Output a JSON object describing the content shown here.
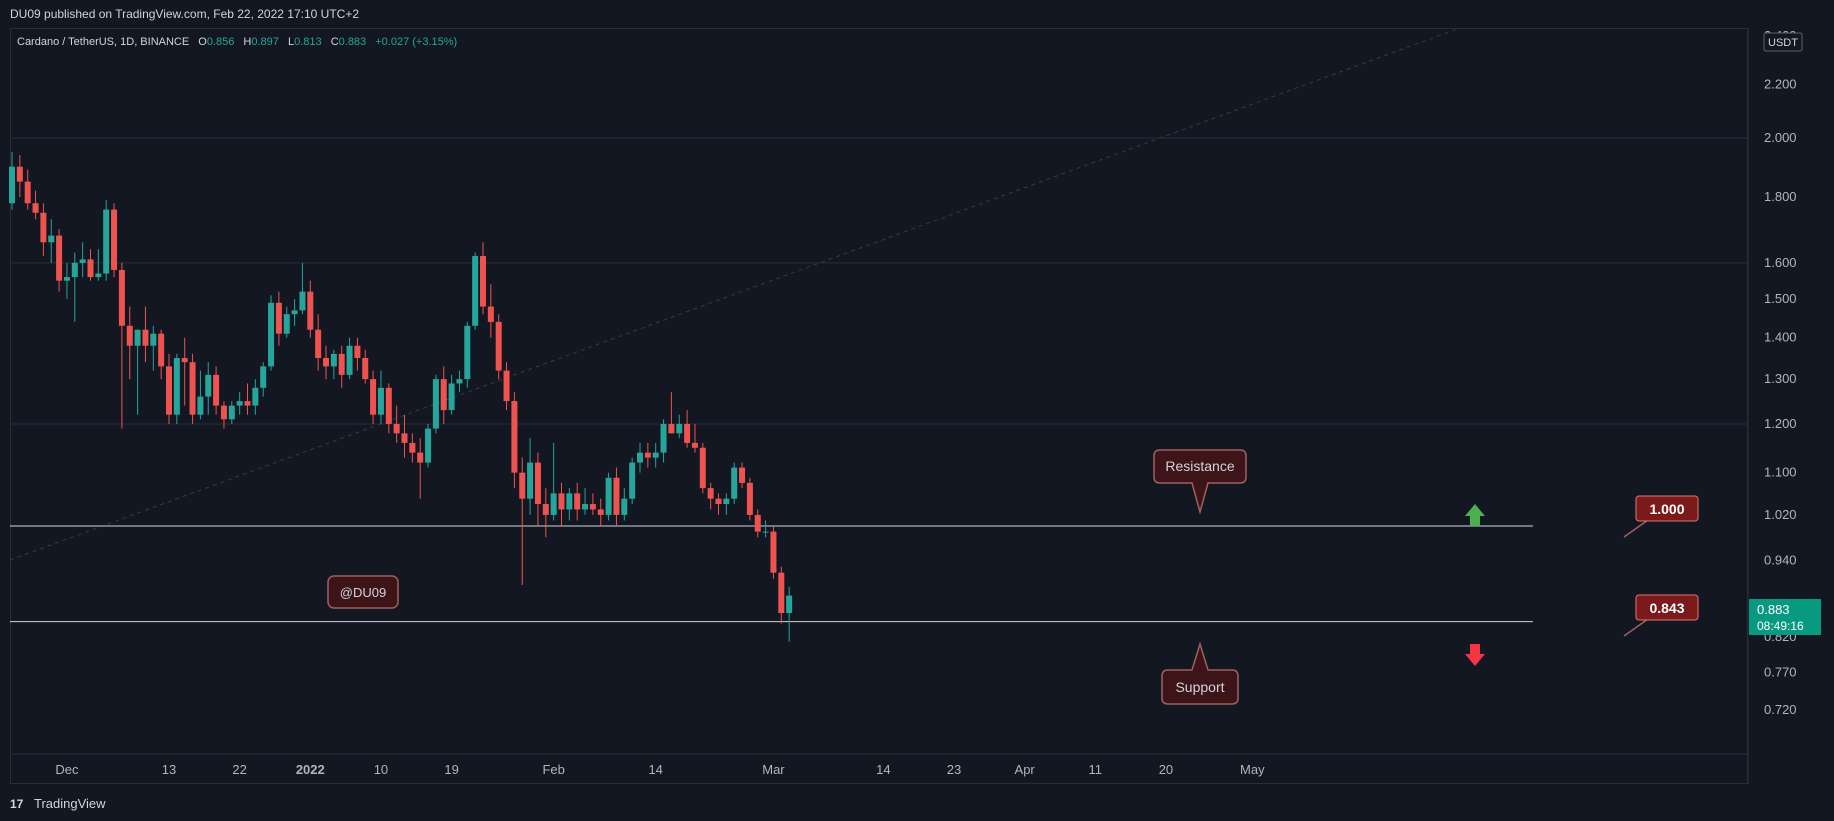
{
  "header": {
    "published": "DU09 published on TradingView.com, Feb 22, 2022 17:10 UTC+2"
  },
  "symbol_line": {
    "pair": "Cardano / TetherUS, 1D, BINANCE",
    "o_label": "O",
    "o_value": "0.856",
    "h_label": "H",
    "h_value": "0.897",
    "l_label": "L",
    "l_value": "0.813",
    "c_label": "C",
    "c_value": "0.883",
    "change": "+0.027 (+3.15%)"
  },
  "price_axis": {
    "currency": "USDT",
    "ticks": [
      "2.400",
      "2.200",
      "2.000",
      "1.800",
      "1.600",
      "1.500",
      "1.400",
      "1.300",
      "1.200",
      "1.100",
      "1.020",
      "0.940",
      "0.820",
      "0.770",
      "0.720"
    ]
  },
  "time_axis": {
    "ticks": [
      "Dec",
      "13",
      "22",
      "2022",
      "10",
      "19",
      "Feb",
      "14",
      "Mar",
      "14",
      "23",
      "Apr",
      "11",
      "20",
      "May"
    ]
  },
  "annotations": {
    "resistance": "Resistance",
    "support": "Support",
    "watermark": "@DU09",
    "level_high": "1.000",
    "level_low": "0.843"
  },
  "last_price": {
    "value": "0.883",
    "countdown": "08:49:16"
  },
  "footer": {
    "brand": "TradingView",
    "logo": "17"
  },
  "colors": {
    "background": "#131722",
    "up": "#26a69a",
    "down": "#ef5350",
    "label_bg": "#7a1a1a",
    "label_border": "#e57373",
    "callout_bg": "#3d1518",
    "arrow_up": "#4caf50",
    "arrow_down": "#f23645",
    "last_price_bg": "#089981"
  },
  "chart_data": {
    "type": "candlestick",
    "y_scale": "log",
    "ylim": [
      0.69,
      2.45
    ],
    "horizontal_levels": [
      1.0,
      0.843
    ],
    "candles": [
      {
        "o": 1.78,
        "h": 1.95,
        "l": 1.76,
        "c": 1.9
      },
      {
        "o": 1.9,
        "h": 1.94,
        "l": 1.8,
        "c": 1.85
      },
      {
        "o": 1.85,
        "h": 1.89,
        "l": 1.76,
        "c": 1.78
      },
      {
        "o": 1.78,
        "h": 1.82,
        "l": 1.73,
        "c": 1.75
      },
      {
        "o": 1.75,
        "h": 1.78,
        "l": 1.62,
        "c": 1.66
      },
      {
        "o": 1.66,
        "h": 1.73,
        "l": 1.6,
        "c": 1.68
      },
      {
        "o": 1.68,
        "h": 1.7,
        "l": 1.52,
        "c": 1.55
      },
      {
        "o": 1.55,
        "h": 1.6,
        "l": 1.5,
        "c": 1.56
      },
      {
        "o": 1.56,
        "h": 1.63,
        "l": 1.44,
        "c": 1.6
      },
      {
        "o": 1.6,
        "h": 1.66,
        "l": 1.56,
        "c": 1.61
      },
      {
        "o": 1.61,
        "h": 1.64,
        "l": 1.55,
        "c": 1.56
      },
      {
        "o": 1.56,
        "h": 1.64,
        "l": 1.55,
        "c": 1.57
      },
      {
        "o": 1.57,
        "h": 1.79,
        "l": 1.55,
        "c": 1.76
      },
      {
        "o": 1.76,
        "h": 1.78,
        "l": 1.56,
        "c": 1.58
      },
      {
        "o": 1.58,
        "h": 1.6,
        "l": 1.19,
        "c": 1.43
      },
      {
        "o": 1.43,
        "h": 1.48,
        "l": 1.3,
        "c": 1.38
      },
      {
        "o": 1.38,
        "h": 1.42,
        "l": 1.22,
        "c": 1.42
      },
      {
        "o": 1.42,
        "h": 1.48,
        "l": 1.34,
        "c": 1.38
      },
      {
        "o": 1.38,
        "h": 1.43,
        "l": 1.32,
        "c": 1.41
      },
      {
        "o": 1.41,
        "h": 1.42,
        "l": 1.3,
        "c": 1.33
      },
      {
        "o": 1.33,
        "h": 1.36,
        "l": 1.2,
        "c": 1.22
      },
      {
        "o": 1.22,
        "h": 1.36,
        "l": 1.2,
        "c": 1.35
      },
      {
        "o": 1.35,
        "h": 1.4,
        "l": 1.24,
        "c": 1.34
      },
      {
        "o": 1.34,
        "h": 1.36,
        "l": 1.2,
        "c": 1.22
      },
      {
        "o": 1.22,
        "h": 1.32,
        "l": 1.21,
        "c": 1.26
      },
      {
        "o": 1.26,
        "h": 1.34,
        "l": 1.22,
        "c": 1.31
      },
      {
        "o": 1.31,
        "h": 1.33,
        "l": 1.22,
        "c": 1.24
      },
      {
        "o": 1.24,
        "h": 1.25,
        "l": 1.19,
        "c": 1.21
      },
      {
        "o": 1.21,
        "h": 1.25,
        "l": 1.2,
        "c": 1.24
      },
      {
        "o": 1.24,
        "h": 1.27,
        "l": 1.22,
        "c": 1.25
      },
      {
        "o": 1.25,
        "h": 1.29,
        "l": 1.22,
        "c": 1.24
      },
      {
        "o": 1.24,
        "h": 1.3,
        "l": 1.22,
        "c": 1.28
      },
      {
        "o": 1.28,
        "h": 1.34,
        "l": 1.26,
        "c": 1.33
      },
      {
        "o": 1.33,
        "h": 1.51,
        "l": 1.32,
        "c": 1.49
      },
      {
        "o": 1.49,
        "h": 1.52,
        "l": 1.38,
        "c": 1.41
      },
      {
        "o": 1.41,
        "h": 1.48,
        "l": 1.4,
        "c": 1.46
      },
      {
        "o": 1.46,
        "h": 1.5,
        "l": 1.43,
        "c": 1.47
      },
      {
        "o": 1.47,
        "h": 1.6,
        "l": 1.46,
        "c": 1.52
      },
      {
        "o": 1.52,
        "h": 1.55,
        "l": 1.4,
        "c": 1.42
      },
      {
        "o": 1.42,
        "h": 1.46,
        "l": 1.32,
        "c": 1.35
      },
      {
        "o": 1.35,
        "h": 1.38,
        "l": 1.3,
        "c": 1.33
      },
      {
        "o": 1.33,
        "h": 1.37,
        "l": 1.3,
        "c": 1.36
      },
      {
        "o": 1.36,
        "h": 1.38,
        "l": 1.28,
        "c": 1.31
      },
      {
        "o": 1.31,
        "h": 1.4,
        "l": 1.3,
        "c": 1.38
      },
      {
        "o": 1.38,
        "h": 1.4,
        "l": 1.32,
        "c": 1.35
      },
      {
        "o": 1.35,
        "h": 1.37,
        "l": 1.29,
        "c": 1.3
      },
      {
        "o": 1.3,
        "h": 1.32,
        "l": 1.2,
        "c": 1.22
      },
      {
        "o": 1.22,
        "h": 1.32,
        "l": 1.2,
        "c": 1.28
      },
      {
        "o": 1.28,
        "h": 1.29,
        "l": 1.18,
        "c": 1.2
      },
      {
        "o": 1.2,
        "h": 1.24,
        "l": 1.16,
        "c": 1.18
      },
      {
        "o": 1.18,
        "h": 1.22,
        "l": 1.13,
        "c": 1.16
      },
      {
        "o": 1.16,
        "h": 1.18,
        "l": 1.12,
        "c": 1.14
      },
      {
        "o": 1.14,
        "h": 1.17,
        "l": 1.05,
        "c": 1.12
      },
      {
        "o": 1.12,
        "h": 1.2,
        "l": 1.11,
        "c": 1.19
      },
      {
        "o": 1.19,
        "h": 1.31,
        "l": 1.18,
        "c": 1.3
      },
      {
        "o": 1.3,
        "h": 1.33,
        "l": 1.2,
        "c": 1.23
      },
      {
        "o": 1.23,
        "h": 1.31,
        "l": 1.22,
        "c": 1.29
      },
      {
        "o": 1.29,
        "h": 1.32,
        "l": 1.27,
        "c": 1.3
      },
      {
        "o": 1.3,
        "h": 1.44,
        "l": 1.28,
        "c": 1.43
      },
      {
        "o": 1.43,
        "h": 1.63,
        "l": 1.42,
        "c": 1.62
      },
      {
        "o": 1.62,
        "h": 1.66,
        "l": 1.46,
        "c": 1.48
      },
      {
        "o": 1.48,
        "h": 1.54,
        "l": 1.4,
        "c": 1.44
      },
      {
        "o": 1.44,
        "h": 1.46,
        "l": 1.3,
        "c": 1.32
      },
      {
        "o": 1.32,
        "h": 1.34,
        "l": 1.23,
        "c": 1.25
      },
      {
        "o": 1.25,
        "h": 1.27,
        "l": 1.07,
        "c": 1.1
      },
      {
        "o": 1.1,
        "h": 1.13,
        "l": 0.9,
        "c": 1.05
      },
      {
        "o": 1.05,
        "h": 1.17,
        "l": 1.02,
        "c": 1.12
      },
      {
        "o": 1.12,
        "h": 1.14,
        "l": 1.0,
        "c": 1.04
      },
      {
        "o": 1.04,
        "h": 1.07,
        "l": 0.98,
        "c": 1.02
      },
      {
        "o": 1.02,
        "h": 1.16,
        "l": 1.01,
        "c": 1.06
      },
      {
        "o": 1.06,
        "h": 1.08,
        "l": 1.0,
        "c": 1.03
      },
      {
        "o": 1.03,
        "h": 1.07,
        "l": 1.01,
        "c": 1.06
      },
      {
        "o": 1.06,
        "h": 1.08,
        "l": 1.01,
        "c": 1.03
      },
      {
        "o": 1.03,
        "h": 1.07,
        "l": 1.02,
        "c": 1.04
      },
      {
        "o": 1.04,
        "h": 1.06,
        "l": 1.02,
        "c": 1.03
      },
      {
        "o": 1.03,
        "h": 1.05,
        "l": 1.0,
        "c": 1.02
      },
      {
        "o": 1.02,
        "h": 1.1,
        "l": 1.01,
        "c": 1.09
      },
      {
        "o": 1.09,
        "h": 1.11,
        "l": 1.0,
        "c": 1.02
      },
      {
        "o": 1.02,
        "h": 1.07,
        "l": 1.01,
        "c": 1.05
      },
      {
        "o": 1.05,
        "h": 1.13,
        "l": 1.04,
        "c": 1.12
      },
      {
        "o": 1.12,
        "h": 1.16,
        "l": 1.1,
        "c": 1.14
      },
      {
        "o": 1.14,
        "h": 1.16,
        "l": 1.11,
        "c": 1.13
      },
      {
        "o": 1.13,
        "h": 1.16,
        "l": 1.11,
        "c": 1.14
      },
      {
        "o": 1.14,
        "h": 1.21,
        "l": 1.12,
        "c": 1.2
      },
      {
        "o": 1.2,
        "h": 1.27,
        "l": 1.18,
        "c": 1.18
      },
      {
        "o": 1.18,
        "h": 1.22,
        "l": 1.17,
        "c": 1.2
      },
      {
        "o": 1.2,
        "h": 1.23,
        "l": 1.15,
        "c": 1.16
      },
      {
        "o": 1.16,
        "h": 1.2,
        "l": 1.14,
        "c": 1.15
      },
      {
        "o": 1.15,
        "h": 1.16,
        "l": 1.06,
        "c": 1.07
      },
      {
        "o": 1.07,
        "h": 1.08,
        "l": 1.03,
        "c": 1.05
      },
      {
        "o": 1.05,
        "h": 1.06,
        "l": 1.02,
        "c": 1.04
      },
      {
        "o": 1.04,
        "h": 1.06,
        "l": 1.02,
        "c": 1.05
      },
      {
        "o": 1.05,
        "h": 1.12,
        "l": 1.04,
        "c": 1.11
      },
      {
        "o": 1.11,
        "h": 1.12,
        "l": 1.07,
        "c": 1.08
      },
      {
        "o": 1.08,
        "h": 1.09,
        "l": 1.01,
        "c": 1.02
      },
      {
        "o": 1.02,
        "h": 1.03,
        "l": 0.98,
        "c": 0.99
      },
      {
        "o": 0.99,
        "h": 1.01,
        "l": 0.98,
        "c": 0.99
      },
      {
        "o": 0.99,
        "h": 1.0,
        "l": 0.91,
        "c": 0.92
      },
      {
        "o": 0.92,
        "h": 0.93,
        "l": 0.84,
        "c": 0.856
      },
      {
        "o": 0.856,
        "h": 0.897,
        "l": 0.813,
        "c": 0.883
      }
    ]
  }
}
